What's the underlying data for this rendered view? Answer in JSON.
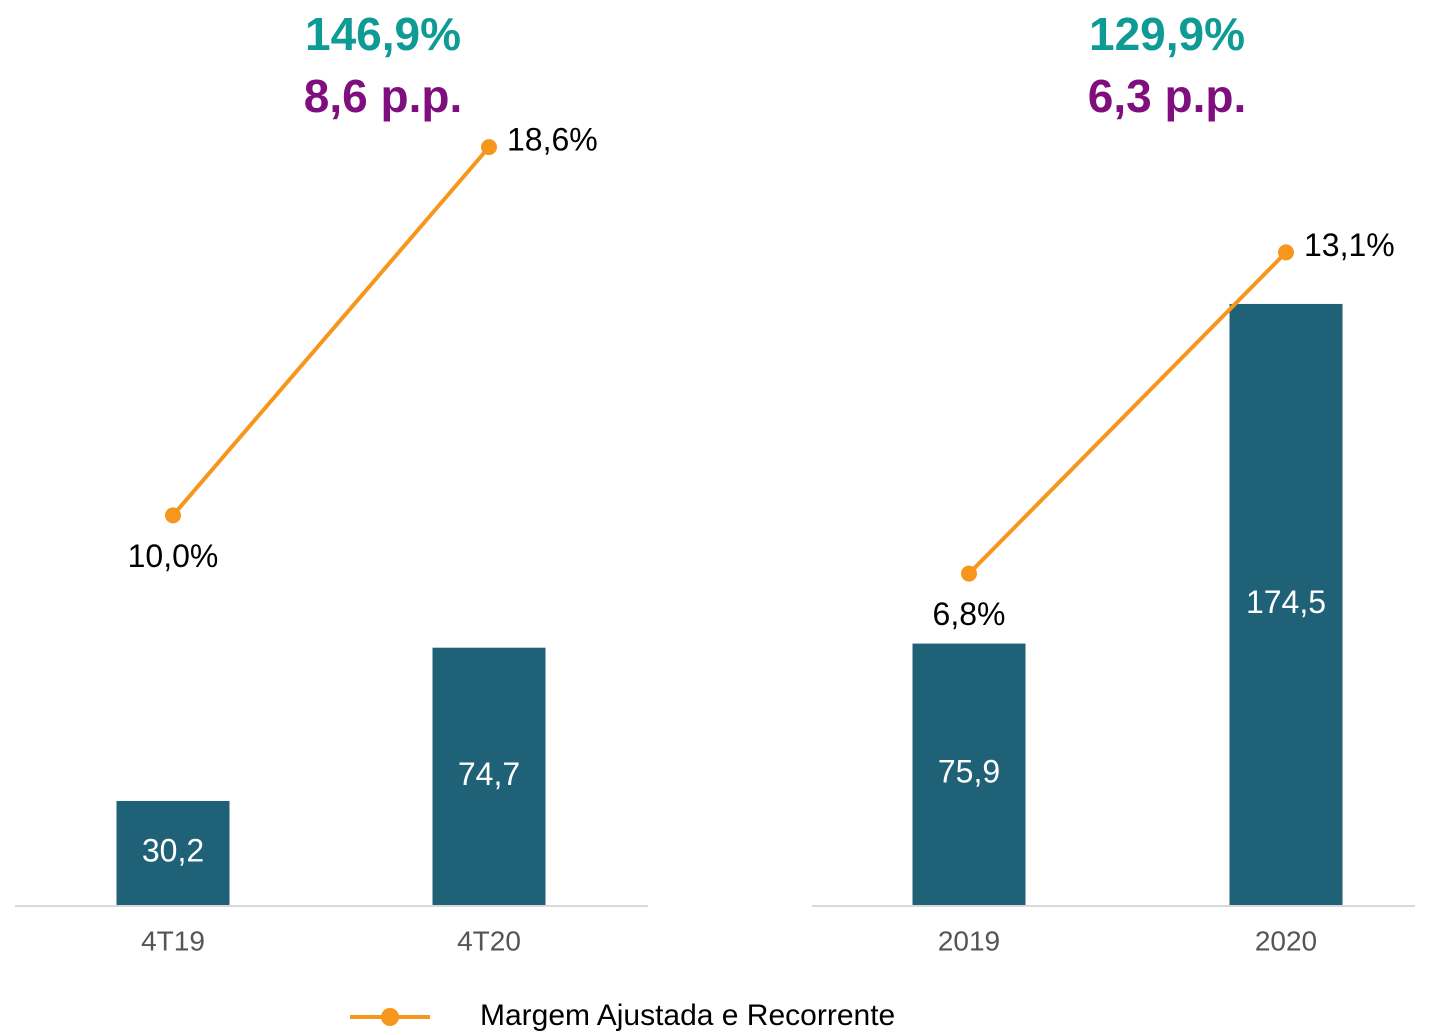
{
  "chart_data": [
    {
      "type": "bar-line",
      "annotations": [
        {
          "text": "146,9%",
          "color": "#0e9a95"
        },
        {
          "text": "8,6 p.p.",
          "color": "#7f0f7e"
        }
      ],
      "categories": [
        "4T19",
        "4T20"
      ],
      "ylim": [
        0,
        225
      ],
      "y2lim": [
        0.9,
        19.0
      ],
      "series": [
        {
          "type": "bar",
          "color": "#1f6177",
          "values": [
            30.2,
            74.7
          ],
          "value_labels": [
            "30,2",
            "74,7"
          ]
        },
        {
          "type": "line",
          "name": "Margem Ajustada e Recorrente",
          "axis": "y2",
          "color": "#f7961d",
          "values": [
            10.0,
            18.6
          ],
          "value_labels": [
            "10,0%",
            "18,6%"
          ]
        }
      ]
    },
    {
      "type": "bar-line",
      "annotations": [
        {
          "text": "129,9%",
          "color": "#0e9a95"
        },
        {
          "text": "6,3 p.p.",
          "color": "#7f0f7e"
        }
      ],
      "categories": [
        "2019",
        "2020"
      ],
      "ylim": [
        0,
        225
      ],
      "y2lim": [
        0.3,
        15.5
      ],
      "series": [
        {
          "type": "bar",
          "color": "#1f6177",
          "values": [
            75.9,
            174.5
          ],
          "value_labels": [
            "75,9",
            "174,5"
          ]
        },
        {
          "type": "line",
          "axis": "y2",
          "color": "#f7961d",
          "values": [
            6.8,
            13.1
          ],
          "value_labels": [
            "6,8%",
            "13,1%"
          ]
        }
      ]
    }
  ]
}
